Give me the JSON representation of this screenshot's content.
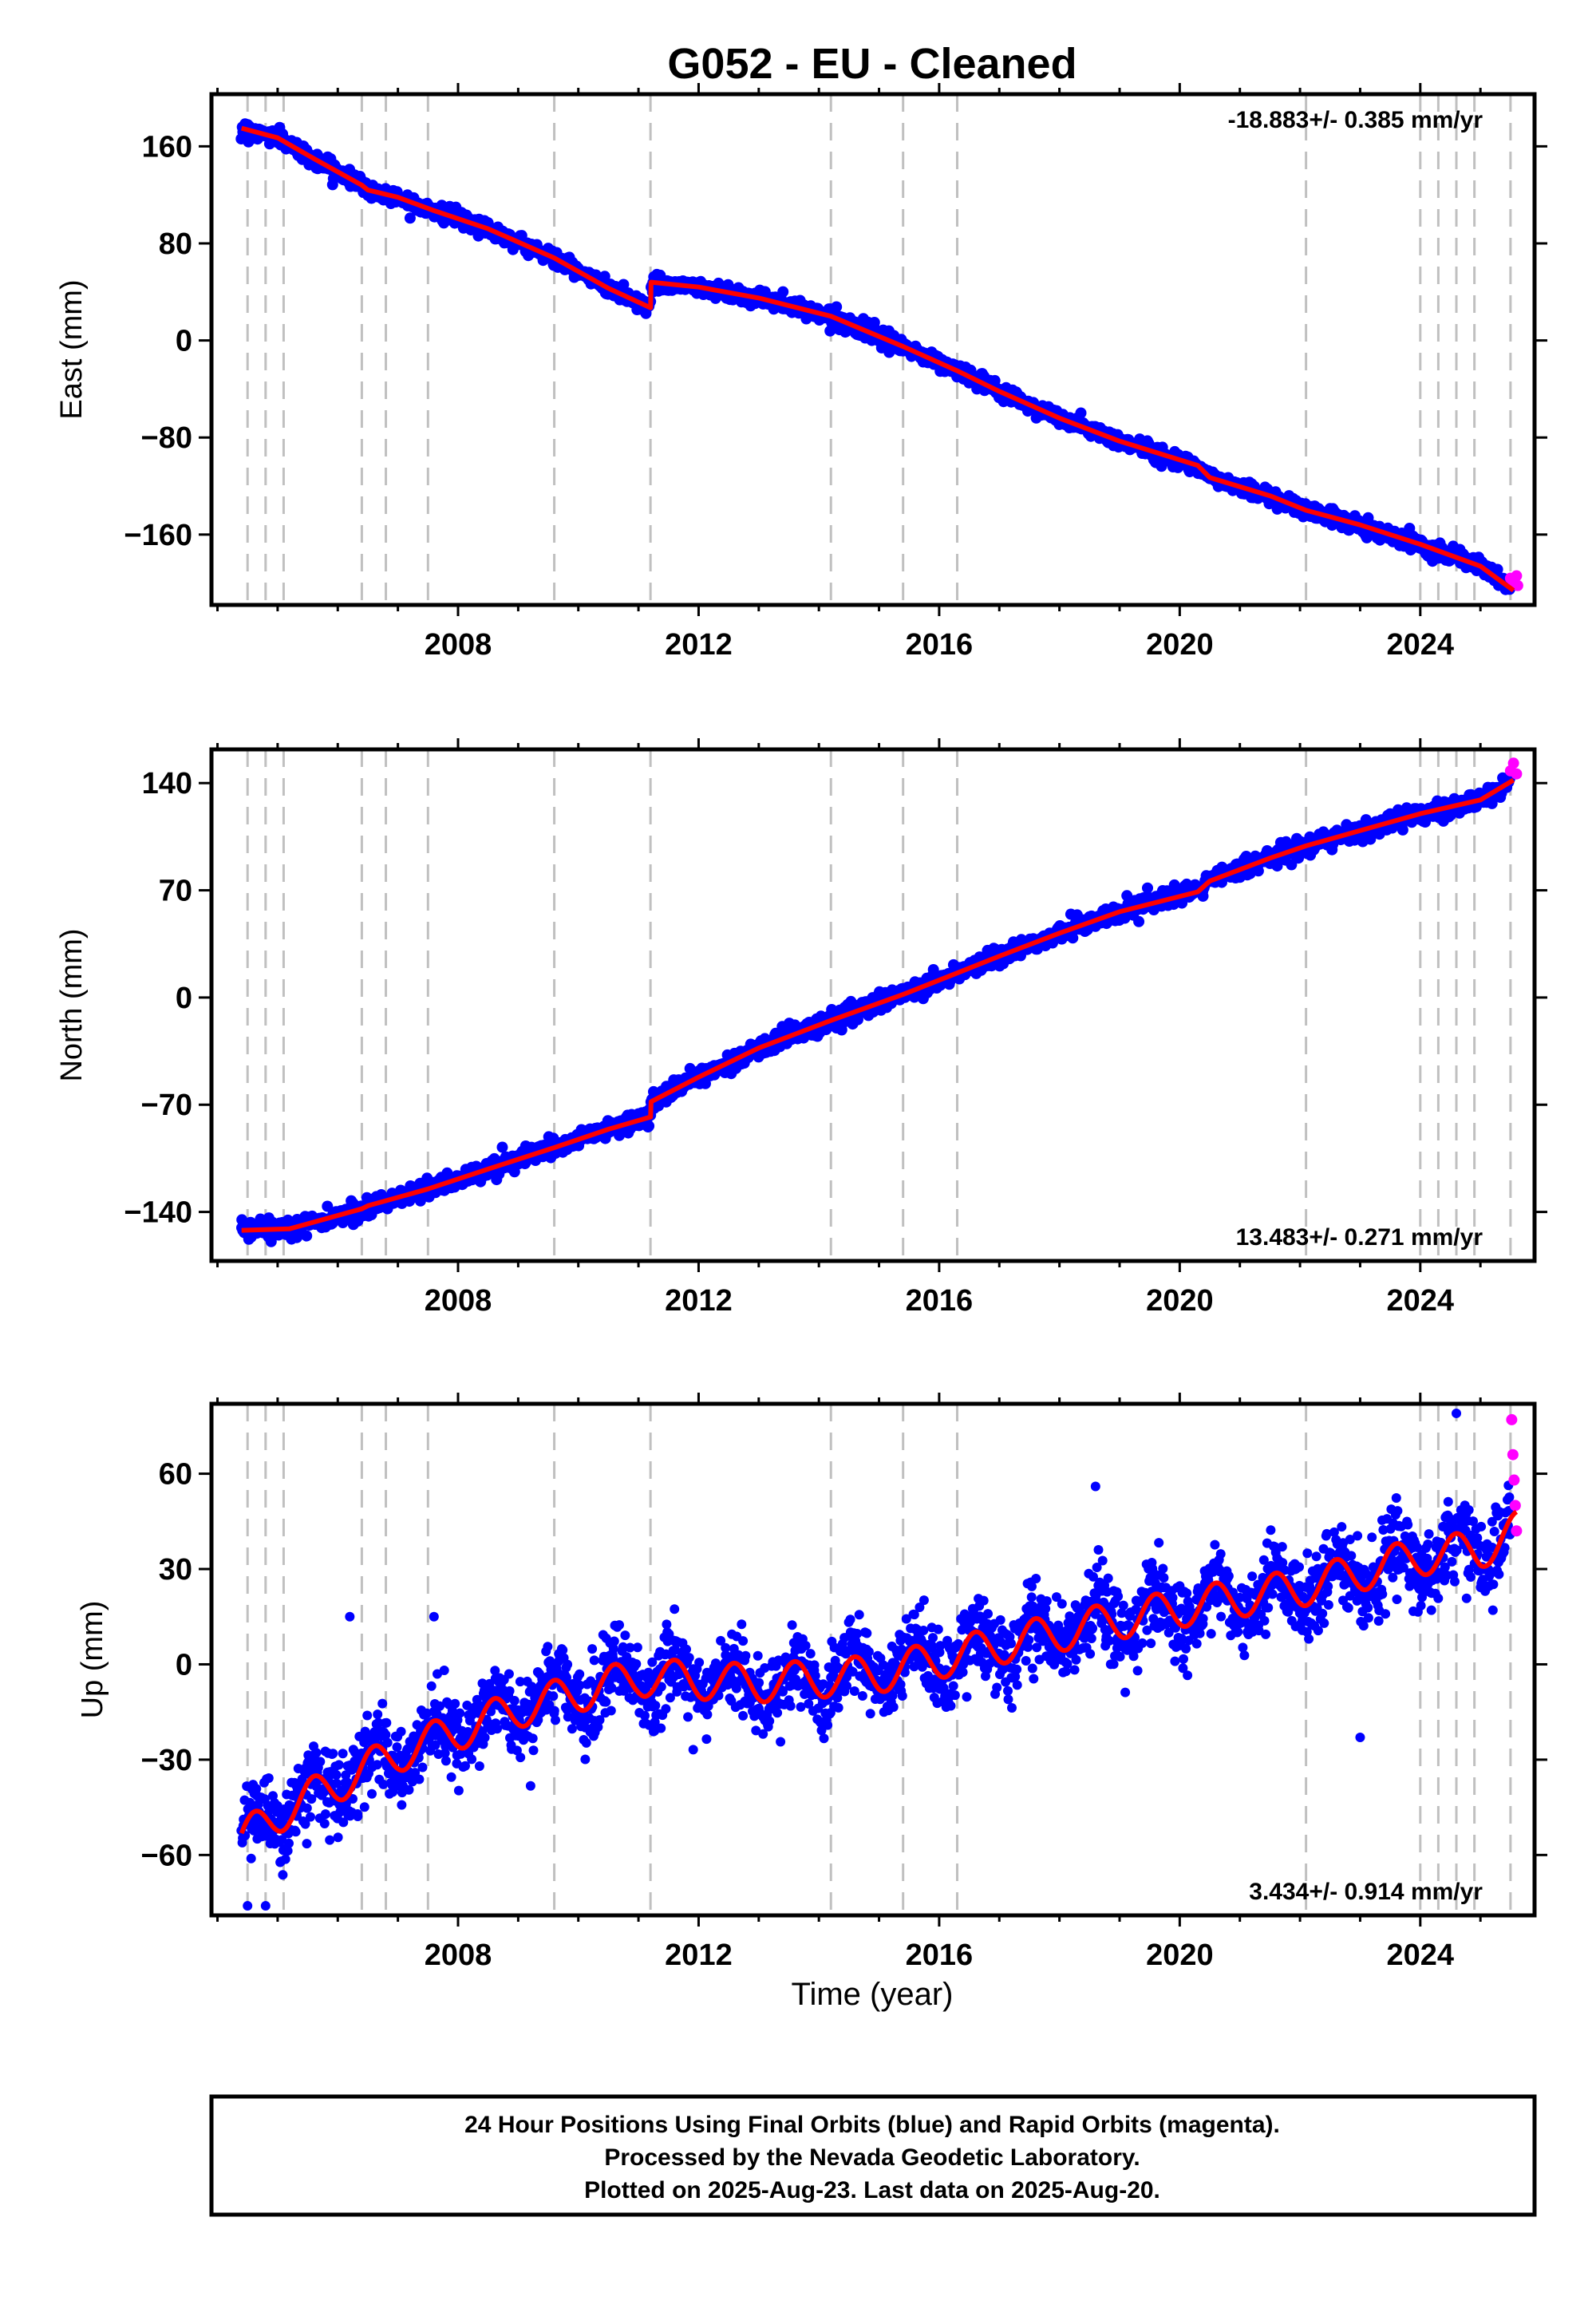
{
  "figure": {
    "title": "G052  - EU - Cleaned",
    "xlabel": "Time (year)",
    "footer_lines": [
      "24 Hour Positions Using Final Orbits (blue) and Rapid Orbits (magenta).",
      "Processed by the Nevada Geodetic Laboratory.",
      "Plotted on 2025-Aug-23. Last data on 2025-Aug-20."
    ]
  },
  "colors": {
    "final_orbits": "#0000ff",
    "rapid_orbits": "#ff00ff",
    "model": "#ff0000",
    "event_lines": "#c0c0c0"
  },
  "chart_data": [
    {
      "type": "scatter",
      "ylabel": "East (mm)",
      "xlim": [
        2003.9,
        2025.9
      ],
      "ylim": [
        -218,
        203
      ],
      "xticks": [
        2008,
        2012,
        2016,
        2020,
        2024
      ],
      "yticks": [
        -160,
        -80,
        0,
        80,
        160
      ],
      "rate_label": "-18.883+/- 0.385 mm/yr",
      "rate_position": "top-right",
      "event_lines": [
        2004.5,
        2004.8,
        2005.1,
        2006.4,
        2006.8,
        2007.5,
        2009.6,
        2011.2,
        2014.2,
        2015.4,
        2016.3,
        2022.1,
        2024.0,
        2024.3,
        2024.6,
        2024.9,
        2025.5
      ],
      "model_x": [
        2004.4,
        2005.0,
        2005.6,
        2006.4,
        2006.5,
        2007.0,
        2007.6,
        2008.5,
        2009.6,
        2010.5,
        2011.2,
        2011.21,
        2012.0,
        2013.0,
        2014.2,
        2015.4,
        2016.3,
        2017.0,
        2018.0,
        2019.0,
        2020.3,
        2020.5,
        2021.5,
        2022.1,
        2023.0,
        2024.0,
        2025.0,
        2025.55
      ],
      "model_y": [
        175,
        167,
        150,
        128,
        124,
        118,
        107,
        92,
        68,
        43,
        27,
        48,
        44,
        35,
        20,
        -5,
        -25,
        -42,
        -64,
        -83,
        -103,
        -113,
        -128,
        -140,
        -152,
        -168,
        -186,
        -206
      ],
      "rapid_x": [
        2025.5,
        2025.55,
        2025.6,
        2025.62
      ],
      "rapid_y": [
        -196,
        -200,
        -194,
        -202
      ]
    },
    {
      "type": "scatter",
      "ylabel": "North (mm)",
      "xlim": [
        2003.9,
        2025.9
      ],
      "ylim": [
        -172,
        162
      ],
      "xticks": [
        2008,
        2012,
        2016,
        2020,
        2024
      ],
      "yticks": [
        -140,
        -70,
        0,
        70,
        140
      ],
      "rate_label": "13.483+/- 0.271 mm/yr",
      "rate_position": "bottom-right",
      "event_lines": [
        2004.5,
        2004.8,
        2005.1,
        2006.4,
        2006.8,
        2007.5,
        2009.6,
        2011.2,
        2014.2,
        2015.4,
        2016.3,
        2022.1,
        2024.0,
        2024.3,
        2024.6,
        2024.9,
        2025.5
      ],
      "model_x": [
        2004.4,
        2005.2,
        2006.4,
        2006.5,
        2007.5,
        2008.5,
        2009.6,
        2010.5,
        2011.2,
        2011.21,
        2012.0,
        2013.0,
        2014.2,
        2015.4,
        2016.3,
        2017.0,
        2018.0,
        2019.0,
        2020.3,
        2020.5,
        2021.5,
        2022.1,
        2023.0,
        2024.0,
        2025.0,
        2025.55
      ],
      "model_y": [
        -152,
        -151,
        -138,
        -136,
        -125,
        -112,
        -98,
        -86,
        -78,
        -68,
        -52,
        -33,
        -15,
        2,
        16,
        27,
        42,
        56,
        69,
        76,
        91,
        99,
        109,
        120,
        129,
        142
      ],
      "rapid_x": [
        2025.5,
        2025.55,
        2025.6
      ],
      "rapid_y": [
        148,
        153,
        146
      ]
    },
    {
      "type": "scatter",
      "ylabel": "Up (mm)",
      "xlim": [
        2003.9,
        2025.9
      ],
      "ylim": [
        -79,
        82
      ],
      "xticks": [
        2008,
        2012,
        2016,
        2020,
        2024
      ],
      "yticks": [
        -60,
        -30,
        0,
        30,
        60
      ],
      "rate_label": "3.434+/- 0.914 mm/yr",
      "rate_position": "bottom-right",
      "event_lines": [
        2004.5,
        2004.8,
        2005.1,
        2006.4,
        2006.8,
        2007.5,
        2009.6,
        2011.2,
        2014.2,
        2015.4,
        2016.3,
        2022.1,
        2024.0,
        2024.3,
        2024.6,
        2024.9,
        2025.5
      ],
      "trend_x": [
        2004.4,
        2005.2,
        2007.0,
        2009.0,
        2011.0,
        2013.0,
        2015.0,
        2017.0,
        2019.0,
        2020.4,
        2022.0,
        2024.0,
        2025.0,
        2025.6
      ],
      "trend_y": [
        -55,
        -45,
        -28,
        -14,
        -4,
        -6,
        -3,
        6,
        14,
        19,
        24,
        34,
        36,
        42
      ],
      "seasonal_amplitude": 6,
      "scatter_sigma": 6,
      "outliers_x": [
        2004.5,
        2004.8,
        2006.2,
        2007.6,
        2018.6,
        2023.0,
        2024.6
      ],
      "outliers_y": [
        -76,
        -76,
        15,
        15,
        56,
        -23,
        79
      ],
      "rapid_x": [
        2025.52,
        2025.54,
        2025.56,
        2025.58,
        2025.6
      ],
      "rapid_y": [
        77,
        66,
        58,
        50,
        42
      ]
    }
  ]
}
